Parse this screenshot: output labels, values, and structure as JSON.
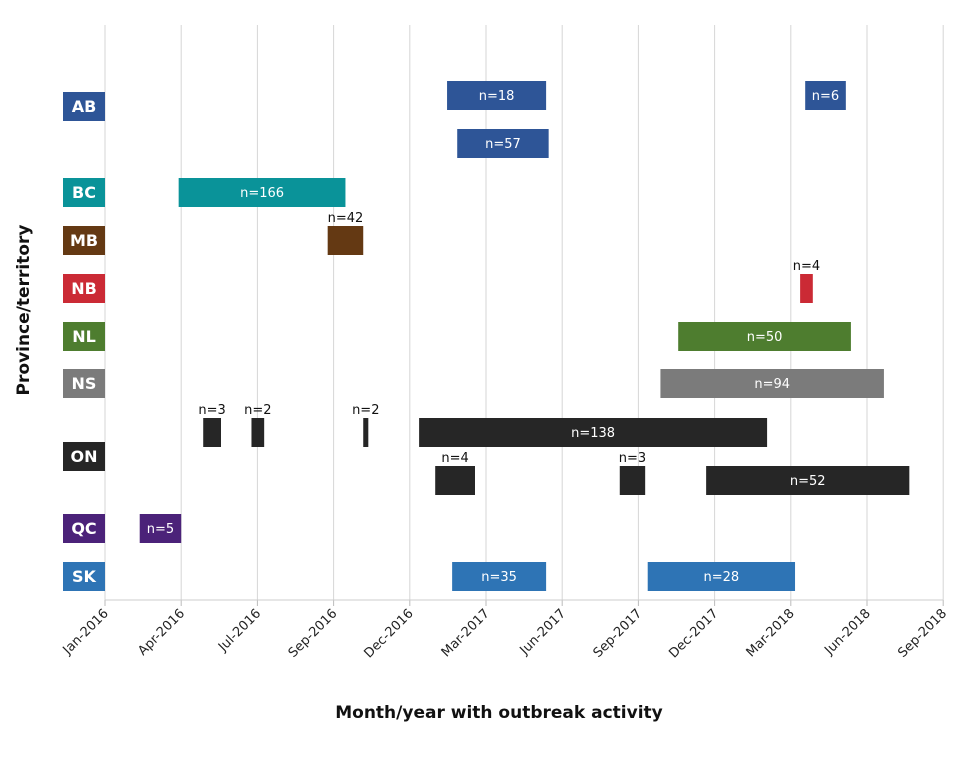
{
  "chart_data": {
    "type": "gantt",
    "title": "",
    "xlabel": "Month/year with outbreak activity",
    "ylabel": "Province/territory",
    "grid": "vertical",
    "x_ticks": [
      "Jan-2016",
      "Apr-2016",
      "Jul-2016",
      "Sep-2016",
      "Dec-2016",
      "Mar-2017",
      "Jun-2017",
      "Sep-2017",
      "Dec-2017",
      "Mar-2018",
      "Jun-2018",
      "Sep-2018"
    ],
    "categories": [
      {
        "code": "AB",
        "color": "#2e5597",
        "lanes": 2
      },
      {
        "code": "BC",
        "color": "#0a9399",
        "lanes": 1
      },
      {
        "code": "MB",
        "color": "#643913",
        "lanes": 1
      },
      {
        "code": "NB",
        "color": "#cb2a35",
        "lanes": 1
      },
      {
        "code": "NL",
        "color": "#4e7d2f",
        "lanes": 1
      },
      {
        "code": "NS",
        "color": "#7b7b7b",
        "lanes": 1
      },
      {
        "code": "ON",
        "color": "#262626",
        "lanes": 2
      },
      {
        "code": "QC",
        "color": "#4b2279",
        "lanes": 1
      },
      {
        "code": "SK",
        "color": "#2e74b5",
        "lanes": 1
      }
    ],
    "bars": [
      {
        "province": "AB",
        "lane": 0,
        "start": "2017-02-15",
        "end": "2017-06-12",
        "label": "n=18"
      },
      {
        "province": "AB",
        "lane": 0,
        "start": "2018-04-18",
        "end": "2018-06-06",
        "label": "n=6"
      },
      {
        "province": "AB",
        "lane": 1,
        "start": "2017-02-27",
        "end": "2017-06-15",
        "label": "n=57"
      },
      {
        "province": "BC",
        "lane": 0,
        "start": "2016-03-28",
        "end": "2016-10-15",
        "label": "n=166"
      },
      {
        "province": "MB",
        "lane": 0,
        "start": "2016-09-24",
        "end": "2016-11-06",
        "label": "n=42"
      },
      {
        "province": "NB",
        "lane": 0,
        "start": "2018-04-12",
        "end": "2018-04-27",
        "label": "n=4"
      },
      {
        "province": "NL",
        "lane": 0,
        "start": "2017-11-18",
        "end": "2018-06-12",
        "label": "n=50"
      },
      {
        "province": "NS",
        "lane": 0,
        "start": "2017-10-27",
        "end": "2018-07-21",
        "label": "n=94"
      },
      {
        "province": "ON",
        "lane": 0,
        "start": "2016-04-27",
        "end": "2016-05-18",
        "label": "n=3"
      },
      {
        "province": "ON",
        "lane": 0,
        "start": "2016-06-24",
        "end": "2016-07-09",
        "label": "n=2"
      },
      {
        "province": "ON",
        "lane": 0,
        "start": "2016-11-06",
        "end": "2016-11-12",
        "label": "n=2"
      },
      {
        "province": "ON",
        "lane": 0,
        "start": "2017-01-12",
        "end": "2018-03-03",
        "label": "n=138"
      },
      {
        "province": "ON",
        "lane": 1,
        "start": "2017-02-01",
        "end": "2017-03-18",
        "label": "n=4"
      },
      {
        "province": "ON",
        "lane": 1,
        "start": "2017-09-09",
        "end": "2017-10-09",
        "label": "n=3"
      },
      {
        "province": "ON",
        "lane": 1,
        "start": "2017-12-21",
        "end": "2018-08-21",
        "label": "n=52"
      },
      {
        "province": "QC",
        "lane": 0,
        "start": "2016-02-12",
        "end": "2016-04-01",
        "label": "n=5"
      },
      {
        "province": "SK",
        "lane": 0,
        "start": "2017-02-21",
        "end": "2017-06-12",
        "label": "n=35"
      },
      {
        "province": "SK",
        "lane": 0,
        "start": "2017-10-12",
        "end": "2018-04-06",
        "label": "n=28"
      }
    ]
  }
}
